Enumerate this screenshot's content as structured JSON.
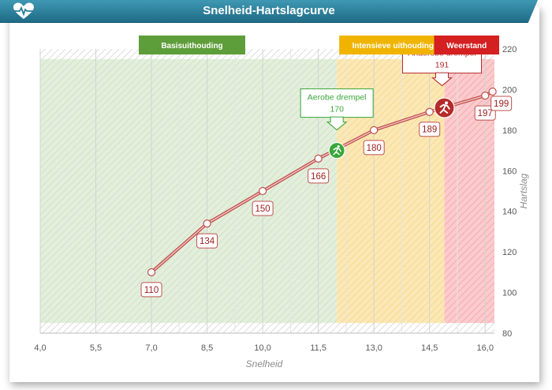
{
  "window": {
    "title": "Snelheid-Hartslagcurve",
    "logo_icon": "heart-pulse-icon"
  },
  "chart_data": {
    "type": "line",
    "title": "Snelheid-Hartslagcurve",
    "xlabel": "Snelheid",
    "ylabel": "Hartslag",
    "xlim": [
      4.0,
      16.25
    ],
    "ylim": [
      80,
      220
    ],
    "x_ticks": [
      "4,0",
      "5,5",
      "7,0",
      "8,5",
      "10,0",
      "11,5",
      "13,0",
      "14,5",
      "16,0"
    ],
    "y_ticks": [
      "80",
      "100",
      "120",
      "140",
      "160",
      "180",
      "200",
      "220"
    ],
    "series": [
      {
        "x": [
          7.0,
          8.5,
          10.0,
          11.5,
          13.0,
          14.5,
          16.0,
          16.2
        ],
        "y": [
          110,
          134,
          150,
          166,
          180,
          189,
          197,
          199
        ],
        "labels": [
          "110",
          "134",
          "150",
          "166",
          "180",
          "189",
          "197",
          "199"
        ],
        "color": "#c0504d"
      }
    ],
    "zones": [
      {
        "label": "Basisuithouding",
        "x_start": 4.0,
        "x_end": 12.0,
        "color": "#5e9e3a",
        "fill": "#cfe5c5"
      },
      {
        "label": "Intensieve uithouding",
        "x_start": 12.0,
        "x_end": 14.9,
        "color": "#f0b400",
        "fill": "#fbe2a4"
      },
      {
        "label": "Weerstand",
        "x_start": 14.9,
        "x_end": 16.25,
        "color": "#d42020",
        "fill": "#f8b9bc"
      }
    ],
    "thresholds": [
      {
        "label": "Aerobe drempel",
        "value": "170",
        "x": 12.0,
        "y": 170,
        "color": "#3aa63a",
        "icon": "runner-icon"
      },
      {
        "label": "Anaerobe drempel",
        "value": "191",
        "x": 14.9,
        "y": 191,
        "color": "#b52a2a",
        "icon": "runner-icon"
      }
    ],
    "grid": true
  }
}
